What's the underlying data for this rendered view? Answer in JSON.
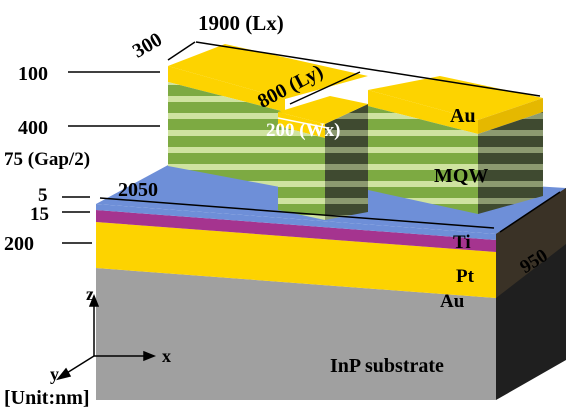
{
  "dimensions": {
    "lx": "1900 (Lx)",
    "ly": "800 (Ly)",
    "wx": "200 (Wx)",
    "left_offset": "300",
    "substrate_x": "2050",
    "substrate_depth": "950"
  },
  "layer_thicknesses": {
    "top_au": "100",
    "mqw": "400",
    "gap": "75 (Gap/2)",
    "ti": "5",
    "pt": "15",
    "bottom_au": "200"
  },
  "materials": {
    "top_au": "Au",
    "mqw": "MQW",
    "ti": "Ti",
    "pt": "Pt",
    "bottom_au": "Au",
    "substrate": "InP substrate"
  },
  "axes": {
    "z": "z",
    "y": "y",
    "x": "x"
  },
  "unit": "[Unit:nm]",
  "colors": {
    "gold": "#FDD300",
    "gold_dark": "#E5B800",
    "mqw_green": "#7DAA42",
    "mqw_light": "#CFE3A0",
    "ti_blue": "#6E8FD8",
    "pt_magenta": "#A5348F",
    "substrate_gray": "#A0A0A0",
    "substrate_dark": "#2A2A2A"
  }
}
